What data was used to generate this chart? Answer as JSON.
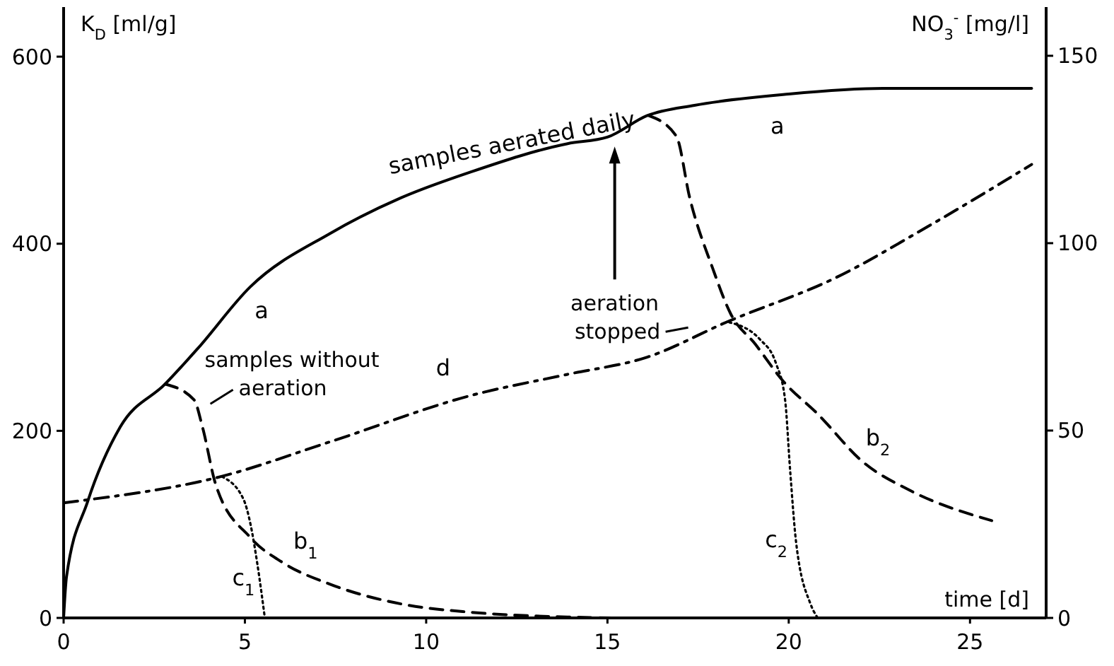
{
  "chart_data": {
    "type": "line",
    "xlabel": "time [d]",
    "ylabel": "K$_{D}$ [ml/g]",
    "y2label": "NO$_{3}$$^{-}$ [mg/l]",
    "xlim": [
      0,
      27.1
    ],
    "xticks": [
      0,
      5,
      10,
      15,
      20,
      25
    ],
    "ylim": [
      0,
      653
    ],
    "yticks": [
      0,
      200,
      400,
      600
    ],
    "y2lim": [
      0,
      163
    ],
    "y2ticks": [
      0,
      50,
      100,
      150
    ],
    "grid": false,
    "color": "#000000",
    "series": [
      {
        "name": "a",
        "line_style": "solid",
        "x": [
          0,
          0.08,
          0.66,
          1.56,
          2.8,
          3.7,
          5.15,
          7.35,
          9.3,
          11.25,
          13.9,
          15.0,
          16.1,
          17.4,
          20.0,
          22.6,
          26.7
        ],
        "values": [
          0,
          44,
          124,
          204,
          250,
          288,
          354,
          411,
          449,
          477,
          507,
          514,
          537,
          548,
          560,
          566,
          566
        ]
      },
      {
        "name": "b$_{1}$",
        "line_style": "dashed",
        "x": [
          2.8,
          3.6,
          3.83,
          4.2,
          5.15,
          6.05,
          7.35,
          9.3,
          11.25,
          13.9,
          15.2
        ],
        "values": [
          250,
          233,
          204,
          142,
          86,
          59,
          36,
          15,
          6,
          1,
          0
        ]
      },
      {
        "name": "c$_{1}$",
        "line_style": "dotted",
        "x": [
          4.37,
          4.96,
          5.15,
          5.35,
          5.55
        ],
        "values": [
          151,
          127,
          101,
          56,
          0
        ]
      },
      {
        "name": "b$_{2}$",
        "line_style": "dashed",
        "x": [
          16.13,
          16.9,
          17.27,
          17.9,
          18.4,
          19.07,
          19.85,
          20.8,
          22.07,
          23.36,
          25.6
        ],
        "values": [
          537,
          515,
          449,
          374,
          325,
          293,
          253,
          218,
          166,
          136,
          104
        ]
      },
      {
        "name": "c$_{2}$",
        "line_style": "dotted",
        "x": [
          18.36,
          19.2,
          19.65,
          19.9,
          20.04,
          20.2,
          20.6,
          20.8
        ],
        "values": [
          316,
          298,
          272,
          233,
          157,
          82,
          15,
          0
        ]
      },
      {
        "name": "d",
        "line_style": "dashdot",
        "axis": "y2",
        "x": [
          0,
          0.08,
          4.37,
          7.35,
          11.25,
          13.9,
          16.1,
          18.3,
          21.3,
          23.9,
          26.7
        ],
        "values": [
          30.7,
          30.8,
          37.8,
          47,
          59.4,
          65,
          69.6,
          79,
          90.8,
          104.8,
          121
        ]
      }
    ],
    "annotations": [
      {
        "text": "samples aerated daily",
        "x": 12.4,
        "y": 500
      },
      "samples without aeration",
      {
        "text": "aeration stopped",
        "x": 15.2,
        "y": 510
      }
    ]
  }
}
